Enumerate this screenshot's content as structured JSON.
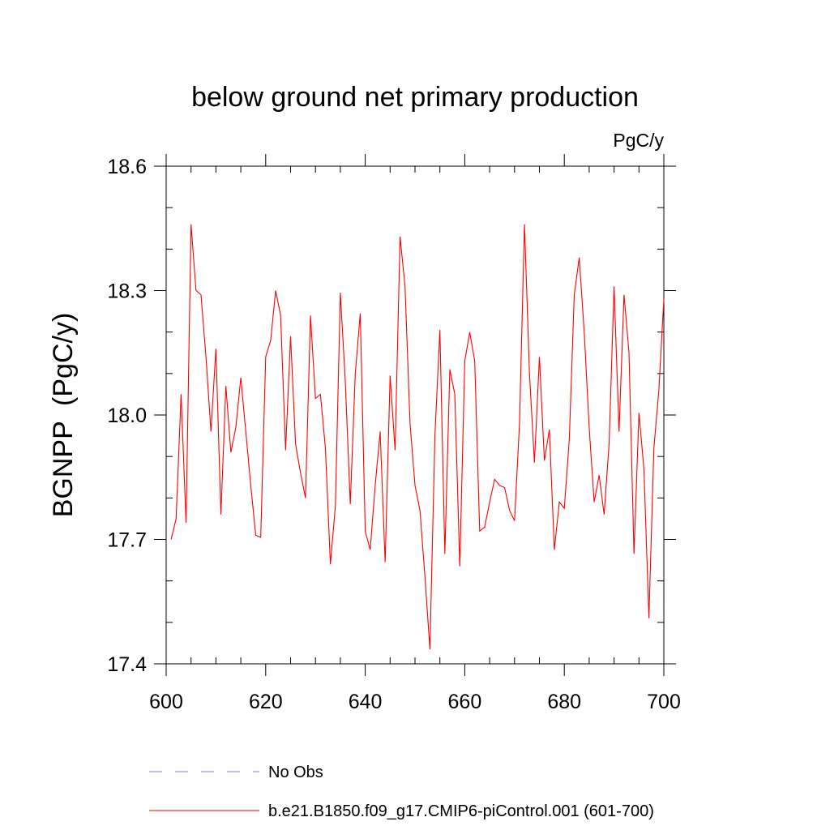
{
  "chart_data": {
    "type": "line",
    "title": "below ground net primary production",
    "units_label": "PgC/y",
    "ylabel": "BGNPP  (PgC/y)",
    "xlabel": "",
    "xlim": [
      600,
      700
    ],
    "ylim": [
      17.4,
      18.6
    ],
    "xticks": [
      600,
      620,
      640,
      660,
      680,
      700
    ],
    "xtick_labels": [
      "600",
      "620",
      "640",
      "660",
      "680",
      "700"
    ],
    "yticks": [
      17.4,
      17.7,
      18.0,
      18.3,
      18.6
    ],
    "ytick_labels": [
      "17.4",
      "17.7",
      "18.0",
      "18.3",
      "18.6"
    ],
    "x_minor_step": 5,
    "y_minor_step": 0.1,
    "grid": false,
    "legend_position": "bottom-left",
    "series": [
      {
        "name": "b.e21.B1850.f09_g17.CMIP6-piControl.001 (601-700)",
        "color": "#ff0000",
        "style": "solid",
        "x": [
          601,
          602,
          603,
          604,
          605,
          606,
          607,
          608,
          609,
          610,
          611,
          612,
          613,
          614,
          615,
          616,
          617,
          618,
          619,
          620,
          621,
          622,
          623,
          624,
          625,
          626,
          627,
          628,
          629,
          630,
          631,
          632,
          633,
          634,
          635,
          636,
          637,
          638,
          639,
          640,
          641,
          642,
          643,
          644,
          645,
          646,
          647,
          648,
          649,
          650,
          651,
          652,
          653,
          654,
          655,
          656,
          657,
          658,
          659,
          660,
          661,
          662,
          663,
          664,
          665,
          666,
          667,
          668,
          669,
          670,
          671,
          672,
          673,
          674,
          675,
          676,
          677,
          678,
          679,
          680,
          681,
          682,
          683,
          684,
          685,
          686,
          687,
          688,
          689,
          690,
          691,
          692,
          693,
          694,
          695,
          696,
          697,
          698,
          699,
          700
        ],
        "values": [
          17.7,
          17.75,
          18.05,
          17.74,
          18.46,
          18.3,
          18.29,
          18.14,
          17.96,
          18.16,
          17.76,
          18.07,
          17.91,
          17.97,
          18.09,
          17.96,
          17.83,
          17.71,
          17.705,
          18.14,
          18.18,
          18.3,
          18.24,
          17.915,
          18.19,
          17.93,
          17.86,
          17.8,
          18.24,
          18.04,
          18.05,
          17.92,
          17.64,
          17.78,
          18.295,
          18.08,
          17.785,
          18.1,
          18.245,
          17.72,
          17.675,
          17.83,
          17.96,
          17.645,
          18.095,
          17.915,
          18.43,
          18.31,
          17.98,
          17.83,
          17.77,
          17.61,
          17.435,
          17.95,
          18.205,
          17.665,
          18.11,
          18.05,
          17.635,
          18.13,
          18.2,
          18.13,
          17.72,
          17.73,
          17.79,
          17.845,
          17.83,
          17.825,
          17.77,
          17.745,
          17.98,
          18.46,
          18.1,
          17.885,
          18.14,
          17.89,
          17.965,
          17.675,
          17.79,
          17.775,
          17.94,
          18.29,
          18.38,
          18.2,
          17.97,
          17.79,
          17.855,
          17.76,
          17.93,
          18.31,
          17.96,
          18.29,
          18.15,
          17.665,
          18.005,
          17.87,
          17.51,
          17.92,
          18.06,
          18.28
        ]
      },
      {
        "name": "No Obs",
        "color": "#8080c8",
        "style": "dashed",
        "x": [],
        "values": []
      }
    ]
  }
}
